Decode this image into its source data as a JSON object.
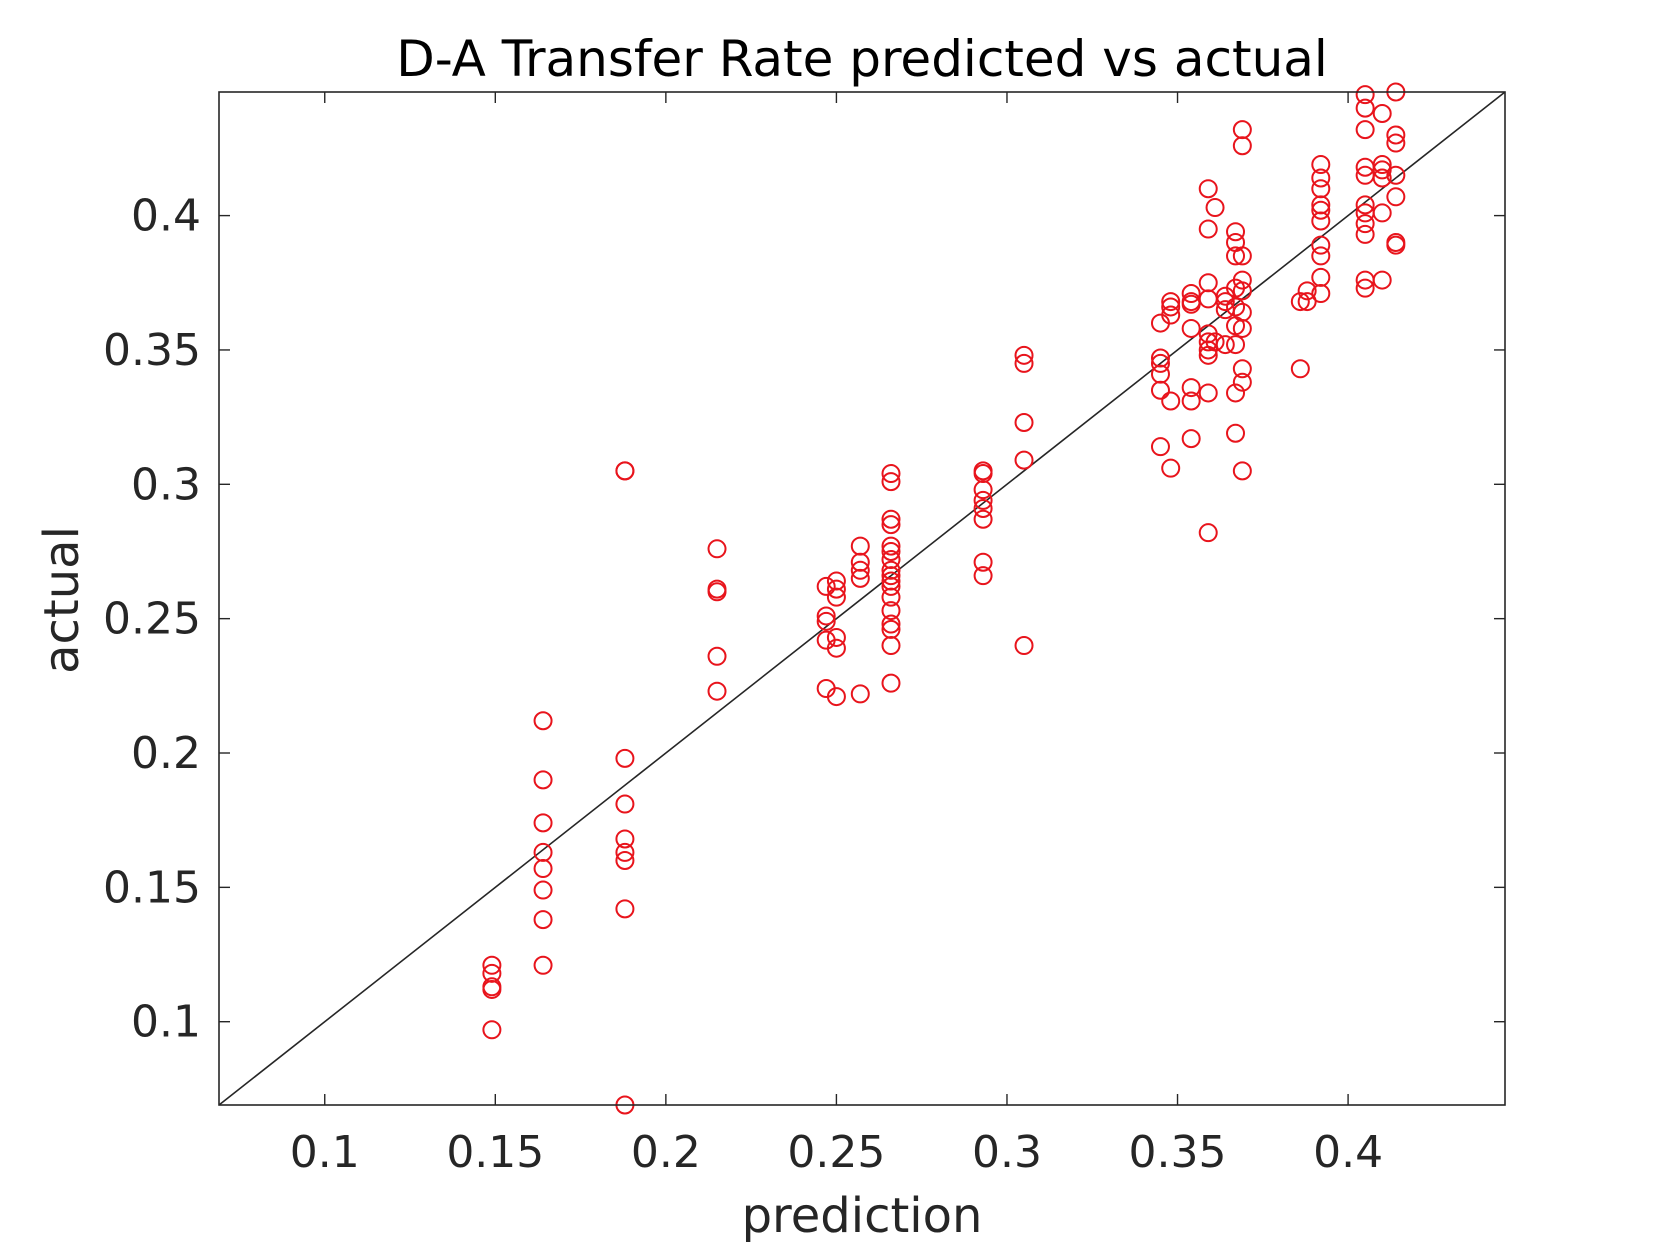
{
  "chart_data": {
    "type": "scatter",
    "title": "D-A Transfer Rate predicted vs actual",
    "xlabel": "prediction",
    "ylabel": "actual",
    "xlim": [
      0.069,
      0.446
    ],
    "ylim": [
      0.069,
      0.446
    ],
    "xticks": [
      0.1,
      0.15,
      0.2,
      0.25,
      0.3,
      0.35,
      0.4
    ],
    "xtick_labels": [
      "0.1",
      "0.15",
      "0.2",
      "0.25",
      "0.3",
      "0.35",
      "0.4"
    ],
    "yticks": [
      0.1,
      0.15,
      0.2,
      0.25,
      0.3,
      0.35,
      0.4
    ],
    "ytick_labels": [
      "0.1",
      "0.15",
      "0.2",
      "0.25",
      "0.3",
      "0.35",
      "0.4"
    ],
    "grid": false,
    "marker": "circle-open",
    "marker_color": "#e8141c",
    "reference_line": {
      "from": [
        0.069,
        0.069
      ],
      "to": [
        0.446,
        0.446
      ],
      "color": "#262626"
    },
    "series": [
      {
        "points": [
          [
            0.149,
            0.121
          ],
          [
            0.149,
            0.118
          ],
          [
            0.149,
            0.113
          ],
          [
            0.149,
            0.112
          ],
          [
            0.149,
            0.097
          ],
          [
            0.164,
            0.212
          ],
          [
            0.164,
            0.19
          ],
          [
            0.164,
            0.174
          ],
          [
            0.164,
            0.163
          ],
          [
            0.164,
            0.157
          ],
          [
            0.164,
            0.149
          ],
          [
            0.164,
            0.138
          ],
          [
            0.164,
            0.121
          ],
          [
            0.188,
            0.305
          ],
          [
            0.188,
            0.305
          ],
          [
            0.188,
            0.198
          ],
          [
            0.188,
            0.181
          ],
          [
            0.188,
            0.168
          ],
          [
            0.188,
            0.163
          ],
          [
            0.188,
            0.16
          ],
          [
            0.188,
            0.142
          ],
          [
            0.188,
            0.069
          ],
          [
            0.215,
            0.276
          ],
          [
            0.215,
            0.261
          ],
          [
            0.215,
            0.26
          ],
          [
            0.215,
            0.236
          ],
          [
            0.215,
            0.223
          ],
          [
            0.247,
            0.262
          ],
          [
            0.247,
            0.251
          ],
          [
            0.247,
            0.249
          ],
          [
            0.247,
            0.242
          ],
          [
            0.247,
            0.224
          ],
          [
            0.25,
            0.264
          ],
          [
            0.25,
            0.261
          ],
          [
            0.25,
            0.258
          ],
          [
            0.25,
            0.243
          ],
          [
            0.25,
            0.239
          ],
          [
            0.25,
            0.221
          ],
          [
            0.257,
            0.277
          ],
          [
            0.257,
            0.271
          ],
          [
            0.257,
            0.268
          ],
          [
            0.257,
            0.265
          ],
          [
            0.257,
            0.222
          ],
          [
            0.266,
            0.304
          ],
          [
            0.266,
            0.301
          ],
          [
            0.266,
            0.287
          ],
          [
            0.266,
            0.285
          ],
          [
            0.266,
            0.277
          ],
          [
            0.266,
            0.275
          ],
          [
            0.266,
            0.272
          ],
          [
            0.266,
            0.268
          ],
          [
            0.266,
            0.266
          ],
          [
            0.266,
            0.264
          ],
          [
            0.266,
            0.262
          ],
          [
            0.266,
            0.258
          ],
          [
            0.266,
            0.253
          ],
          [
            0.266,
            0.248
          ],
          [
            0.266,
            0.246
          ],
          [
            0.266,
            0.24
          ],
          [
            0.266,
            0.226
          ],
          [
            0.293,
            0.305
          ],
          [
            0.293,
            0.304
          ],
          [
            0.293,
            0.298
          ],
          [
            0.293,
            0.294
          ],
          [
            0.293,
            0.291
          ],
          [
            0.293,
            0.287
          ],
          [
            0.293,
            0.271
          ],
          [
            0.293,
            0.266
          ],
          [
            0.305,
            0.348
          ],
          [
            0.305,
            0.345
          ],
          [
            0.305,
            0.323
          ],
          [
            0.305,
            0.309
          ],
          [
            0.305,
            0.24
          ],
          [
            0.345,
            0.36
          ],
          [
            0.345,
            0.347
          ],
          [
            0.345,
            0.345
          ],
          [
            0.345,
            0.341
          ],
          [
            0.345,
            0.335
          ],
          [
            0.345,
            0.314
          ],
          [
            0.348,
            0.368
          ],
          [
            0.348,
            0.366
          ],
          [
            0.348,
            0.363
          ],
          [
            0.348,
            0.331
          ],
          [
            0.348,
            0.306
          ],
          [
            0.354,
            0.371
          ],
          [
            0.354,
            0.368
          ],
          [
            0.354,
            0.367
          ],
          [
            0.354,
            0.358
          ],
          [
            0.354,
            0.336
          ],
          [
            0.354,
            0.331
          ],
          [
            0.354,
            0.317
          ],
          [
            0.359,
            0.41
          ],
          [
            0.359,
            0.395
          ],
          [
            0.359,
            0.375
          ],
          [
            0.359,
            0.369
          ],
          [
            0.359,
            0.356
          ],
          [
            0.359,
            0.353
          ],
          [
            0.359,
            0.35
          ],
          [
            0.359,
            0.348
          ],
          [
            0.359,
            0.334
          ],
          [
            0.359,
            0.282
          ],
          [
            0.361,
            0.403
          ],
          [
            0.361,
            0.353
          ],
          [
            0.364,
            0.37
          ],
          [
            0.364,
            0.368
          ],
          [
            0.364,
            0.365
          ],
          [
            0.364,
            0.352
          ],
          [
            0.367,
            0.394
          ],
          [
            0.367,
            0.39
          ],
          [
            0.367,
            0.385
          ],
          [
            0.367,
            0.373
          ],
          [
            0.367,
            0.366
          ],
          [
            0.367,
            0.359
          ],
          [
            0.367,
            0.352
          ],
          [
            0.367,
            0.334
          ],
          [
            0.367,
            0.319
          ],
          [
            0.369,
            0.432
          ],
          [
            0.369,
            0.426
          ],
          [
            0.369,
            0.385
          ],
          [
            0.369,
            0.376
          ],
          [
            0.369,
            0.372
          ],
          [
            0.369,
            0.364
          ],
          [
            0.369,
            0.358
          ],
          [
            0.369,
            0.343
          ],
          [
            0.369,
            0.338
          ],
          [
            0.369,
            0.305
          ],
          [
            0.386,
            0.368
          ],
          [
            0.386,
            0.343
          ],
          [
            0.388,
            0.372
          ],
          [
            0.388,
            0.368
          ],
          [
            0.392,
            0.419
          ],
          [
            0.392,
            0.414
          ],
          [
            0.392,
            0.41
          ],
          [
            0.392,
            0.404
          ],
          [
            0.392,
            0.402
          ],
          [
            0.392,
            0.398
          ],
          [
            0.392,
            0.389
          ],
          [
            0.392,
            0.385
          ],
          [
            0.392,
            0.377
          ],
          [
            0.392,
            0.371
          ],
          [
            0.405,
            0.445
          ],
          [
            0.405,
            0.44
          ],
          [
            0.405,
            0.432
          ],
          [
            0.405,
            0.418
          ],
          [
            0.405,
            0.415
          ],
          [
            0.405,
            0.404
          ],
          [
            0.405,
            0.401
          ],
          [
            0.405,
            0.397
          ],
          [
            0.405,
            0.393
          ],
          [
            0.405,
            0.376
          ],
          [
            0.405,
            0.373
          ],
          [
            0.41,
            0.438
          ],
          [
            0.41,
            0.419
          ],
          [
            0.41,
            0.417
          ],
          [
            0.41,
            0.414
          ],
          [
            0.41,
            0.401
          ],
          [
            0.41,
            0.376
          ],
          [
            0.414,
            0.446
          ],
          [
            0.414,
            0.43
          ],
          [
            0.414,
            0.427
          ],
          [
            0.414,
            0.415
          ],
          [
            0.414,
            0.407
          ],
          [
            0.414,
            0.39
          ],
          [
            0.414,
            0.389
          ]
        ]
      }
    ]
  }
}
